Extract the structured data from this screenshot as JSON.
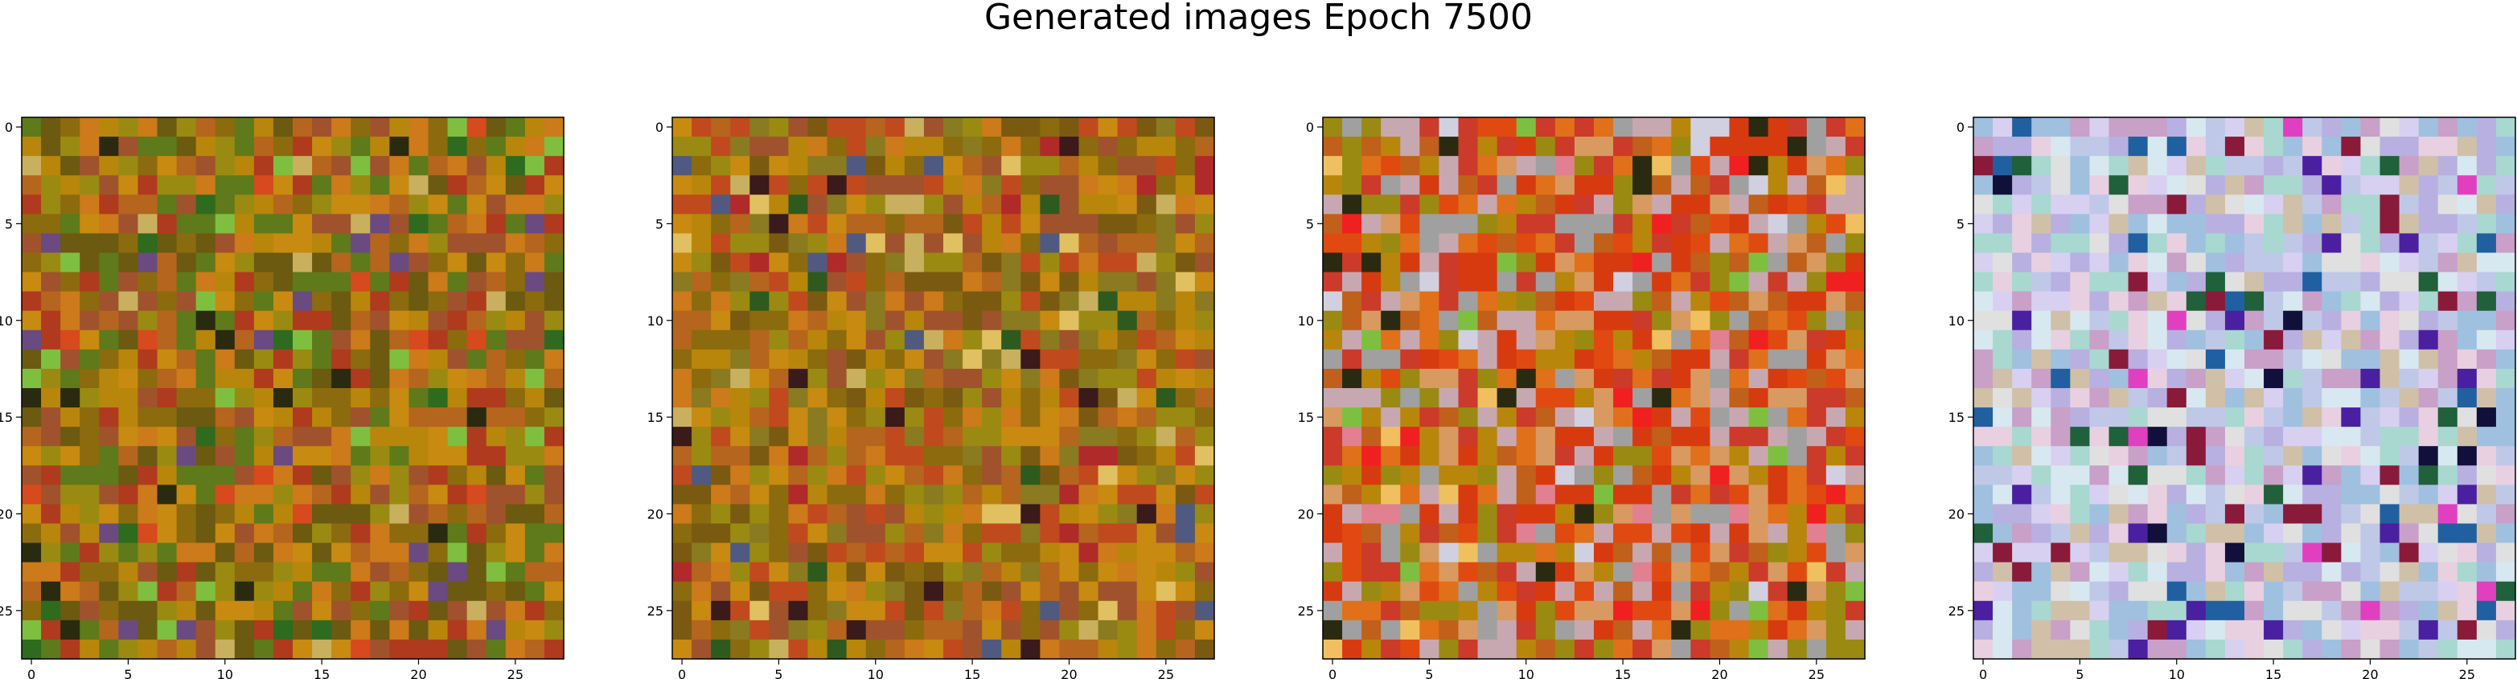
{
  "title": "Generated images Epoch 7500",
  "chart_data": {
    "type": "heatmap",
    "title": "Generated images Epoch 7500",
    "grid_size": [
      28,
      28
    ],
    "panels": [
      {
        "palette": [
          "#b8860b",
          "#a0522d",
          "#c88a10",
          "#8b6b0e",
          "#b5651d",
          "#9a8a12",
          "#6b5a10",
          "#cc7a1a",
          "#b03a1e",
          "#5e7a1a"
        ],
        "accents": [
          "#2e6b1e",
          "#7fbf3f",
          "#d64a1e",
          "#2a2a10",
          "#c9b05e",
          "#6a4a80"
        ]
      },
      {
        "palette": [
          "#b8860b",
          "#a0522d",
          "#c88a10",
          "#8b6b0e",
          "#b5651d",
          "#9a8a12",
          "#7a5a10",
          "#cc7a1a",
          "#c04a1e",
          "#8a7a20"
        ],
        "accents": [
          "#3a1a1a",
          "#e0c060",
          "#2e5a1e",
          "#b02a2a",
          "#c9b05e",
          "#505a80"
        ]
      },
      {
        "palette": [
          "#b8860b",
          "#c0601a",
          "#e04a10",
          "#d83a10",
          "#e0701a",
          "#9a8a12",
          "#cc3a2a",
          "#d89a60",
          "#c8a8b0",
          "#a0a0a0"
        ],
        "accents": [
          "#2a2a10",
          "#f0c060",
          "#7fbf3f",
          "#d0d0e0",
          "#f02020",
          "#e08090"
        ]
      },
      {
        "palette": [
          "#d8d0f0",
          "#c0c8e8",
          "#e8d0e0",
          "#a8d8d0",
          "#b8b0e0",
          "#d8e8f0",
          "#c8a0c8",
          "#e0e0e0",
          "#a0c0e0",
          "#d0c0a8"
        ],
        "accents": [
          "#10103a",
          "#4a20a0",
          "#20603a",
          "#8a1a3a",
          "#2060a0",
          "#e040c0"
        ]
      }
    ],
    "x_ticks": [
      0,
      5,
      10,
      15,
      20,
      25
    ],
    "y_ticks": [
      0,
      5,
      10,
      15,
      20,
      25
    ],
    "xlim": [
      -0.5,
      27.5
    ],
    "ylim": [
      27.5,
      -0.5
    ]
  }
}
